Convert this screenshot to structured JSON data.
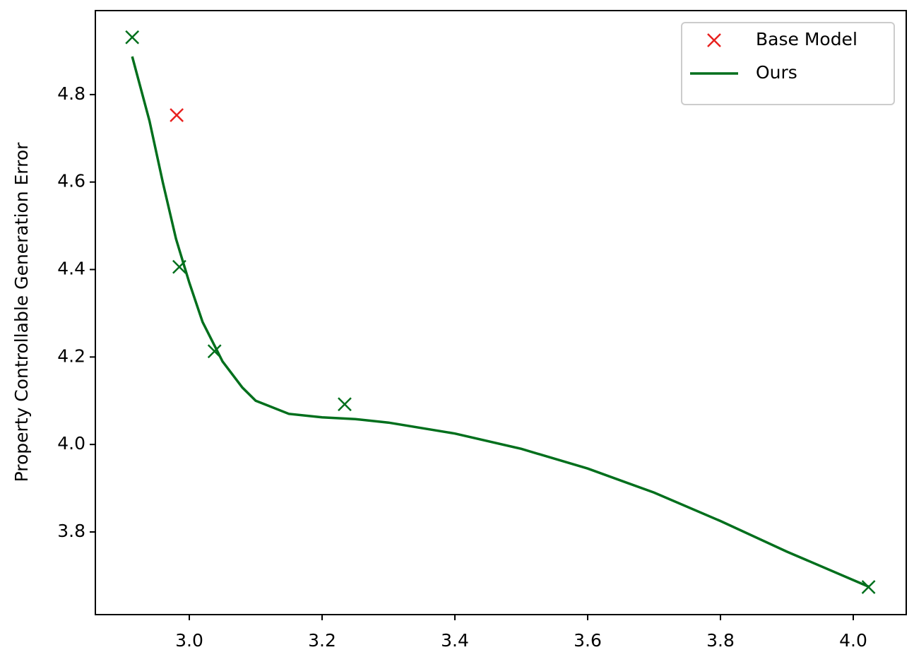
{
  "chart_data": {
    "type": "line",
    "y_label": "Property Controllable Generation Error",
    "xlim": [
      2.8585,
      4.0798
    ],
    "ylim": [
      3.611,
      4.992
    ],
    "xticks": [
      {
        "value": 3,
        "label": "3.0"
      },
      3.2,
      3.4,
      3.6,
      3.8,
      {
        "value": 4,
        "label": "4.0"
      }
    ],
    "yticks": [
      3.8,
      {
        "value": 4,
        "label": "4.0"
      },
      4.2,
      4.4,
      4.6,
      4.8
    ],
    "legend": "upper right",
    "series": [
      {
        "name": "Base Model",
        "color": "#e8211f",
        "kind": "marker",
        "x": [
          2.981
        ],
        "values": [
          4.753
        ]
      },
      {
        "name": "Ours",
        "color": "#006f1c",
        "kind": "line",
        "x": [
          2.914,
          2.94,
          2.96,
          2.98,
          3.0,
          3.02,
          3.05,
          3.08,
          3.1,
          3.15,
          3.2,
          3.25,
          3.3,
          3.4,
          3.5,
          3.6,
          3.7,
          3.8,
          3.9,
          4.023
        ],
        "values": [
          4.887,
          4.74,
          4.6,
          4.47,
          4.37,
          4.28,
          4.19,
          4.13,
          4.1,
          4.07,
          4.062,
          4.058,
          4.05,
          4.025,
          3.99,
          3.945,
          3.89,
          3.825,
          3.755,
          3.675
        ],
        "points": {
          "x": [
            2.914,
            2.985,
            3.038,
            3.234,
            4.023
          ],
          "values": [
            4.931,
            4.406,
            4.213,
            4.092,
            3.674
          ]
        }
      }
    ]
  }
}
